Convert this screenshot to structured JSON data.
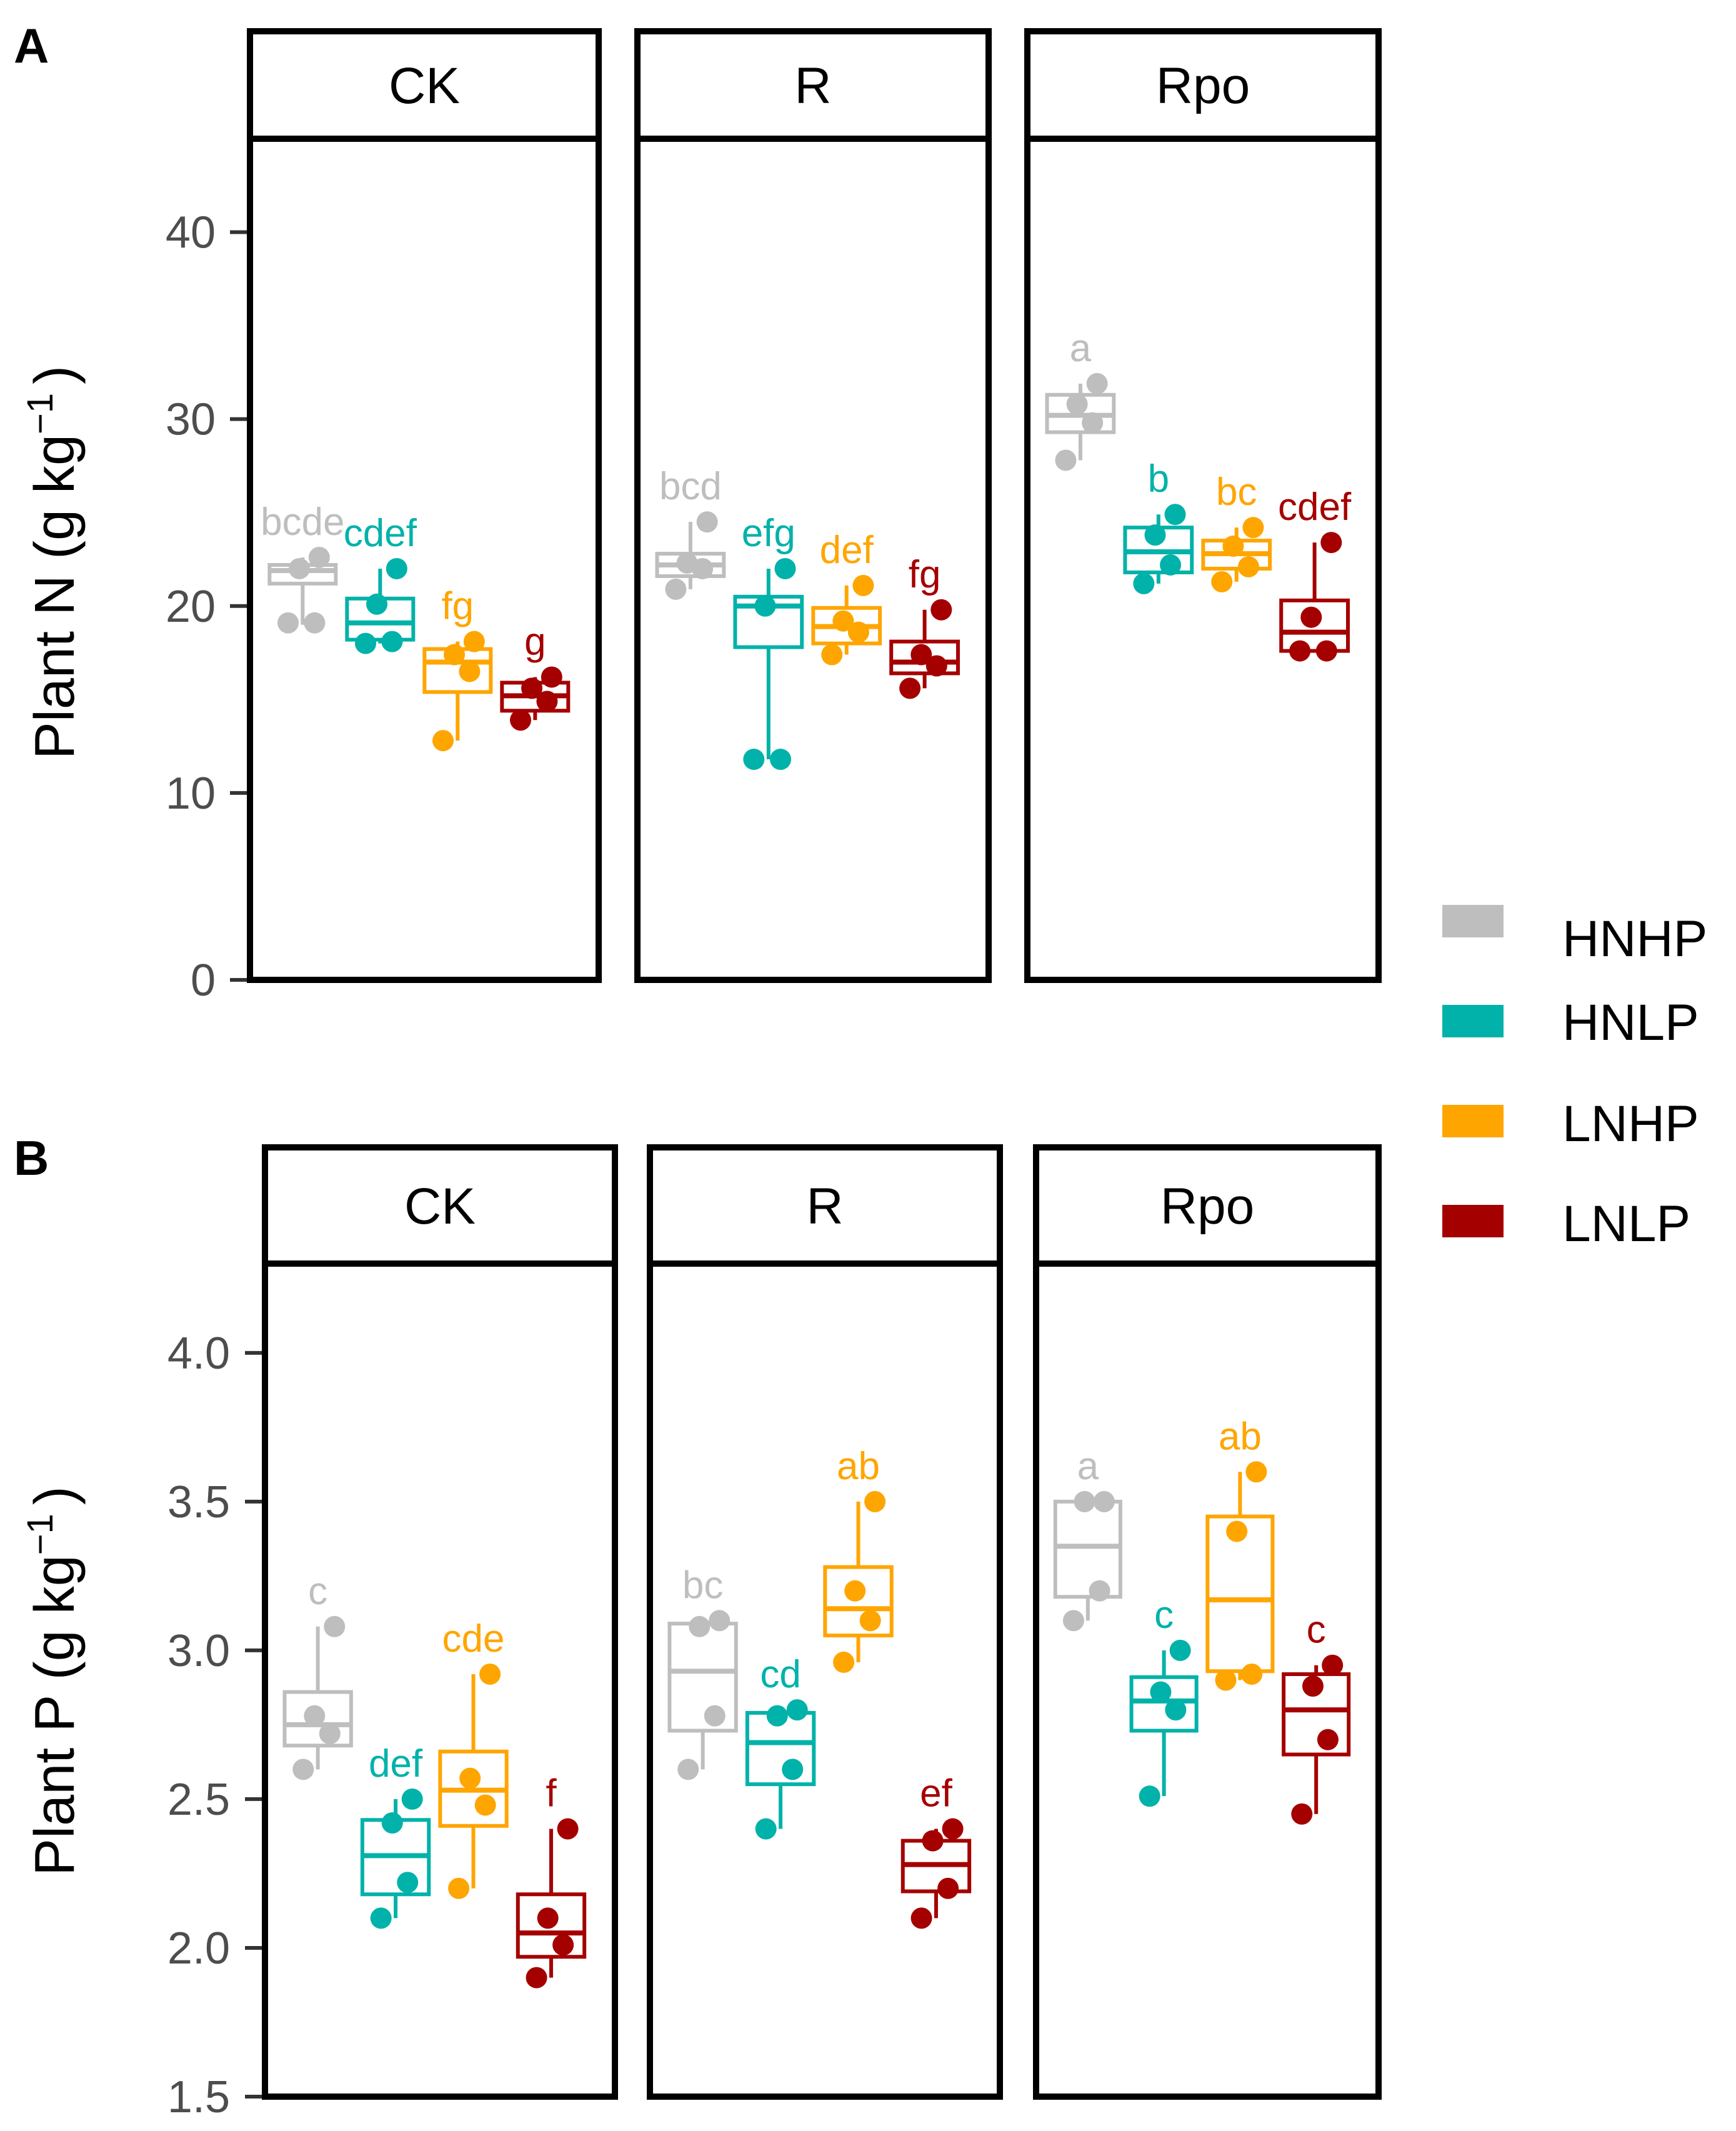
{
  "panel_letters": [
    "A",
    "B"
  ],
  "legend": [
    {
      "label": "HNHP",
      "color": "#bebebe"
    },
    {
      "label": "HNLP",
      "color": "#00b2a9"
    },
    {
      "label": "LNHP",
      "color": "#ffa500"
    },
    {
      "label": "LNLP",
      "color": "#a50000"
    }
  ],
  "chart_data": [
    {
      "type": "box",
      "panel": "A",
      "ylabel": "Plant N (g kg",
      "ylabel_sup": "−1",
      "ylabel_close": ")",
      "ylim": [
        0,
        45
      ],
      "yticks": [
        0,
        10,
        20,
        30,
        40
      ],
      "ytick_labels": [
        "0",
        "10",
        "20",
        "30",
        "40"
      ],
      "facets": [
        {
          "label": "CK",
          "groups": [
            {
              "group": "HNHP",
              "stats": [
                19,
                21.2,
                21.9,
                22.2,
                22.6
              ],
              "points": [
                19.1,
                19.1,
                22.0,
                22.6
              ],
              "letter": "bcde"
            },
            {
              "group": "HNLP",
              "stats": [
                18.0,
                18.2,
                19.1,
                20.4,
                22.0
              ],
              "points": [
                18.0,
                18.1,
                20.1,
                22.0
              ],
              "letter": "cdef"
            },
            {
              "group": "LNHP",
              "stats": [
                12.8,
                15.4,
                17.0,
                17.7,
                18.1
              ],
              "points": [
                12.8,
                16.5,
                17.4,
                18.1
              ],
              "letter": "fg"
            },
            {
              "group": "LNLP",
              "stats": [
                13.9,
                14.4,
                15.2,
                15.9,
                16.2
              ],
              "points": [
                13.9,
                14.9,
                15.6,
                16.2
              ],
              "letter": "g"
            }
          ]
        },
        {
          "label": "R",
          "groups": [
            {
              "group": "HNHP",
              "stats": [
                20.9,
                21.6,
                22.2,
                22.8,
                24.5
              ],
              "points": [
                20.9,
                22.0,
                22.3,
                24.5
              ],
              "letter": "bcd"
            },
            {
              "group": "HNLP",
              "stats": [
                11.8,
                17.8,
                20.0,
                20.5,
                22.0
              ],
              "points": [
                11.8,
                11.8,
                20.0,
                22.0
              ],
              "letter": "efg"
            },
            {
              "group": "LNHP",
              "stats": [
                17.4,
                18.0,
                18.9,
                19.9,
                21.1
              ],
              "points": [
                17.4,
                18.6,
                19.2,
                21.1
              ],
              "letter": "def"
            },
            {
              "group": "LNLP",
              "stats": [
                15.6,
                16.4,
                17.0,
                18.1,
                19.8
              ],
              "points": [
                15.6,
                16.8,
                17.4,
                19.8
              ],
              "letter": "fg"
            }
          ]
        },
        {
          "label": "Rpo",
          "groups": [
            {
              "group": "HNHP",
              "stats": [
                27.8,
                29.3,
                30.2,
                31.3,
                31.9
              ],
              "points": [
                27.8,
                29.8,
                30.8,
                31.9
              ],
              "letter": "a"
            },
            {
              "group": "HNLP",
              "stats": [
                21.2,
                21.8,
                22.9,
                24.2,
                24.9
              ],
              "points": [
                21.2,
                22.2,
                23.8,
                24.9
              ],
              "letter": "b"
            },
            {
              "group": "LNHP",
              "stats": [
                21.3,
                22.0,
                22.8,
                23.5,
                24.2
              ],
              "points": [
                21.3,
                22.1,
                23.2,
                24.2
              ],
              "letter": "bc"
            },
            {
              "group": "LNLP",
              "stats": [
                17.6,
                17.6,
                18.6,
                20.3,
                23.4
              ],
              "points": [
                17.6,
                17.6,
                19.4,
                23.4
              ],
              "letter": "cdef"
            }
          ]
        }
      ]
    },
    {
      "type": "box",
      "panel": "B",
      "ylabel": "Plant P (g kg",
      "ylabel_sup": "−1",
      "ylabel_close": ")",
      "ylim": [
        1.5,
        4.3
      ],
      "yticks": [
        1.5,
        2.0,
        2.5,
        3.0,
        3.5,
        4.0
      ],
      "ytick_labels": [
        "1.5",
        "2.0",
        "2.5",
        "3.0",
        "3.5",
        "4.0"
      ],
      "facets": [
        {
          "label": "CK",
          "groups": [
            {
              "group": "HNHP",
              "stats": [
                2.6,
                2.68,
                2.75,
                2.86,
                3.08
              ],
              "points": [
                2.6,
                2.72,
                2.78,
                3.08
              ],
              "letter": "c"
            },
            {
              "group": "HNLP",
              "stats": [
                2.1,
                2.18,
                2.31,
                2.43,
                2.5
              ],
              "points": [
                2.1,
                2.22,
                2.42,
                2.5
              ],
              "letter": "def"
            },
            {
              "group": "LNHP",
              "stats": [
                2.2,
                2.41,
                2.53,
                2.66,
                2.92
              ],
              "points": [
                2.2,
                2.48,
                2.57,
                2.92
              ],
              "letter": "cde"
            },
            {
              "group": "LNLP",
              "stats": [
                1.9,
                1.97,
                2.05,
                2.18,
                2.4
              ],
              "points": [
                1.9,
                2.01,
                2.1,
                2.4
              ],
              "letter": "f"
            }
          ]
        },
        {
          "label": "R",
          "groups": [
            {
              "group": "HNHP",
              "stats": [
                2.6,
                2.73,
                2.93,
                3.09,
                3.1
              ],
              "points": [
                2.6,
                2.78,
                3.08,
                3.1
              ],
              "letter": "bc"
            },
            {
              "group": "HNLP",
              "stats": [
                2.4,
                2.55,
                2.69,
                2.79,
                2.8
              ],
              "points": [
                2.4,
                2.6,
                2.78,
                2.8
              ],
              "letter": "cd"
            },
            {
              "group": "LNHP",
              "stats": [
                2.96,
                3.05,
                3.14,
                3.28,
                3.5
              ],
              "points": [
                2.96,
                3.1,
                3.2,
                3.5
              ],
              "letter": "ab"
            },
            {
              "group": "LNLP",
              "stats": [
                2.1,
                2.19,
                2.28,
                2.36,
                2.4
              ],
              "points": [
                2.1,
                2.2,
                2.36,
                2.4
              ],
              "letter": "ef"
            }
          ]
        },
        {
          "label": "Rpo",
          "groups": [
            {
              "group": "HNHP",
              "stats": [
                3.1,
                3.18,
                3.35,
                3.5,
                3.5
              ],
              "points": [
                3.1,
                3.2,
                3.5,
                3.5
              ],
              "letter": "a"
            },
            {
              "group": "HNLP",
              "stats": [
                2.51,
                2.73,
                2.83,
                2.91,
                3.0
              ],
              "points": [
                2.51,
                2.8,
                2.86,
                3.0
              ],
              "letter": "c"
            },
            {
              "group": "LNHP",
              "stats": [
                2.9,
                2.93,
                3.17,
                3.45,
                3.6
              ],
              "points": [
                2.9,
                2.92,
                3.4,
                3.6
              ],
              "letter": "ab"
            },
            {
              "group": "LNLP",
              "stats": [
                2.45,
                2.65,
                2.8,
                2.92,
                2.95
              ],
              "points": [
                2.45,
                2.7,
                2.88,
                2.95
              ],
              "letter": "c"
            }
          ]
        }
      ]
    }
  ]
}
